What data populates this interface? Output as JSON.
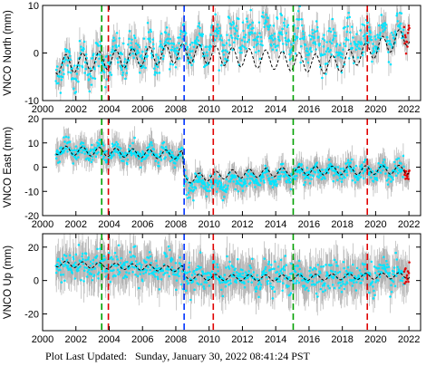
{
  "footer": {
    "label": "Plot Last Updated:",
    "timestamp": "Sunday, January 30, 2022 08:41:24 PST"
  },
  "colors": {
    "errorbar": "#b3b3b3",
    "data": "#00e5ff",
    "recent": "#e00000",
    "model": "#000000",
    "blue_line": "#0033ff",
    "red_line": "#e00000",
    "green_line": "#00a000"
  },
  "chart_data": [
    {
      "type": "scatter",
      "ylabel": "VNCO North (mm)",
      "xlim": [
        2000,
        2022.7
      ],
      "ylim": [
        -10,
        10
      ],
      "yticks": [
        -10,
        0,
        10
      ],
      "data_start": 2000.8,
      "data_end": 2022.05,
      "series_trend": {
        "x": [
          2000.8,
          2008.5,
          2014.0,
          2017.5,
          2022.05
        ],
        "y": [
          -3.5,
          1.5,
          4.5,
          1.0,
          5.0
        ]
      },
      "model_trend": {
        "x": [
          2000.8,
          2008.5,
          2014.0,
          2017.5,
          2022.05
        ],
        "y": [
          -2.5,
          0.0,
          -1.5,
          -2.5,
          3.8
        ]
      },
      "seasonal_amplitude": 2.2,
      "noise": 2.0,
      "error": 2.2
    },
    {
      "type": "scatter",
      "ylabel": "VNCO East (mm)",
      "xlim": [
        2000,
        2022.7
      ],
      "ylim": [
        -20,
        20
      ],
      "yticks": [
        -20,
        -10,
        0,
        10,
        20
      ],
      "data_start": 2000.8,
      "data_end": 2022.05,
      "series_trend": {
        "x": [
          2000.8,
          2008.4,
          2008.5,
          2011.0,
          2016.0,
          2022.05
        ],
        "y": [
          7.0,
          5.0,
          -6.5,
          -7.0,
          -2.0,
          -1.5
        ]
      },
      "model_trend": {
        "x": [
          2000.8,
          2008.4,
          2008.5,
          2011.0,
          2016.0,
          2022.05
        ],
        "y": [
          7.0,
          5.0,
          -5.0,
          -3.0,
          -1.5,
          -1.0
        ]
      },
      "seasonal_amplitude": 2.0,
      "noise": 1.8,
      "error": 4.5
    },
    {
      "type": "scatter",
      "ylabel": "VNCO Up (mm)",
      "xlim": [
        2000,
        2022.7
      ],
      "ylim": [
        -30,
        28
      ],
      "yticks": [
        -20,
        0,
        20
      ],
      "data_start": 2000.8,
      "data_end": 2022.05,
      "series_trend": {
        "x": [
          2000.8,
          2008.4,
          2008.5,
          2014.0,
          2022.05
        ],
        "y": [
          9.0,
          7.0,
          2.0,
          2.0,
          3.0
        ]
      },
      "model_trend": {
        "x": [
          2000.8,
          2008.4,
          2008.5,
          2014.0,
          2022.05
        ],
        "y": [
          10.0,
          7.0,
          2.0,
          1.5,
          3.0
        ]
      },
      "seasonal_amplitude": 2.0,
      "noise": 4.5,
      "error": 10.0
    }
  ],
  "shared_xaxis": {
    "ticks": [
      2000,
      2002,
      2004,
      2006,
      2008,
      2010,
      2012,
      2014,
      2016,
      2018,
      2020,
      2022
    ],
    "labels": [
      "2000",
      "2002",
      "2004",
      "2006",
      "2008",
      "2010",
      "2012",
      "2014",
      "2016",
      "2018",
      "2020",
      "2022"
    ]
  },
  "vertical_markers": [
    {
      "x": 2003.55,
      "color": "green"
    },
    {
      "x": 2003.95,
      "color": "red"
    },
    {
      "x": 2008.5,
      "color": "blue"
    },
    {
      "x": 2010.25,
      "color": "red"
    },
    {
      "x": 2015.05,
      "color": "green"
    },
    {
      "x": 2019.5,
      "color": "red"
    }
  ]
}
